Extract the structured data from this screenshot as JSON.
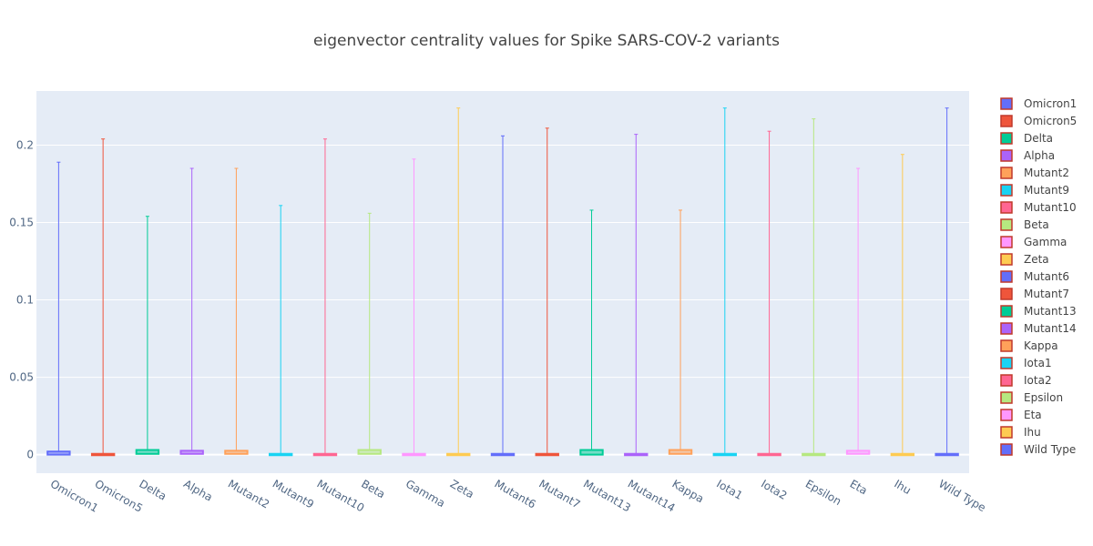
{
  "chart_data": {
    "type": "box",
    "title": "eigenvector centrality values for Spike SARS-COV-2 variants",
    "xlabel": "",
    "ylabel": "",
    "ylim": [
      -0.012,
      0.235
    ],
    "yticks": [
      0,
      0.05,
      0.1,
      0.15,
      0.2
    ],
    "ytick_labels": [
      "0",
      "0.05",
      "0.1",
      "0.15",
      "0.2"
    ],
    "grid": true,
    "legend_position": "right",
    "series": [
      {
        "name": "Omicron1",
        "color": "#636efa",
        "min": 0,
        "q1": 0,
        "q3": 0.002,
        "max": 0.189
      },
      {
        "name": "Omicron5",
        "color": "#ef553b",
        "min": 0,
        "q1": 0,
        "q3": 0.0005,
        "max": 0.204
      },
      {
        "name": "Delta",
        "color": "#00cc96",
        "min": 0,
        "q1": 0.0005,
        "q3": 0.003,
        "max": 0.154
      },
      {
        "name": "Alpha",
        "color": "#ab63fa",
        "min": 0,
        "q1": 0.0005,
        "q3": 0.0025,
        "max": 0.185
      },
      {
        "name": "Mutant2",
        "color": "#ffa15a",
        "min": 0,
        "q1": 0.0005,
        "q3": 0.0025,
        "max": 0.185
      },
      {
        "name": "Mutant9",
        "color": "#19d3f3",
        "min": 0,
        "q1": 0,
        "q3": 0.0005,
        "max": 0.161
      },
      {
        "name": "Mutant10",
        "color": "#ff6692",
        "min": 0,
        "q1": 0,
        "q3": 0.0005,
        "max": 0.204
      },
      {
        "name": "Beta",
        "color": "#b6e880",
        "min": 0,
        "q1": 0.0005,
        "q3": 0.003,
        "max": 0.156
      },
      {
        "name": "Gamma",
        "color": "#ff97ff",
        "min": 0,
        "q1": 0,
        "q3": 0.0005,
        "max": 0.191
      },
      {
        "name": "Zeta",
        "color": "#fecb52",
        "min": 0,
        "q1": 0,
        "q3": 0.0005,
        "max": 0.224
      },
      {
        "name": "Mutant6",
        "color": "#636efa",
        "min": 0,
        "q1": 0,
        "q3": 0.0005,
        "max": 0.206
      },
      {
        "name": "Mutant7",
        "color": "#ef553b",
        "min": 0,
        "q1": 0,
        "q3": 0.0005,
        "max": 0.211
      },
      {
        "name": "Mutant13",
        "color": "#00cc96",
        "min": 0,
        "q1": 0,
        "q3": 0.003,
        "max": 0.158
      },
      {
        "name": "Mutant14",
        "color": "#ab63fa",
        "min": 0,
        "q1": 0,
        "q3": 0.0005,
        "max": 0.207
      },
      {
        "name": "Kappa",
        "color": "#ffa15a",
        "min": 0,
        "q1": 0.0005,
        "q3": 0.003,
        "max": 0.158
      },
      {
        "name": "Iota1",
        "color": "#19d3f3",
        "min": 0,
        "q1": 0,
        "q3": 0.0005,
        "max": 0.224
      },
      {
        "name": "Iota2",
        "color": "#ff6692",
        "min": 0,
        "q1": 0,
        "q3": 0.0005,
        "max": 0.209
      },
      {
        "name": "Epsilon",
        "color": "#b6e880",
        "min": 0,
        "q1": 0,
        "q3": 0.0005,
        "max": 0.217
      },
      {
        "name": "Eta",
        "color": "#ff97ff",
        "min": 0,
        "q1": 0.0005,
        "q3": 0.0025,
        "max": 0.185
      },
      {
        "name": "Ihu",
        "color": "#fecb52",
        "min": 0,
        "q1": 0,
        "q3": 0.0005,
        "max": 0.194
      },
      {
        "name": "Wild Type",
        "color": "#636efa",
        "min": 0,
        "q1": 0,
        "q3": 0.0005,
        "max": 0.224
      }
    ]
  },
  "style": {
    "plot_background": "#e5ecf6",
    "grid_color": "#ffffff",
    "legend_swatch_border": "#c0392b"
  }
}
